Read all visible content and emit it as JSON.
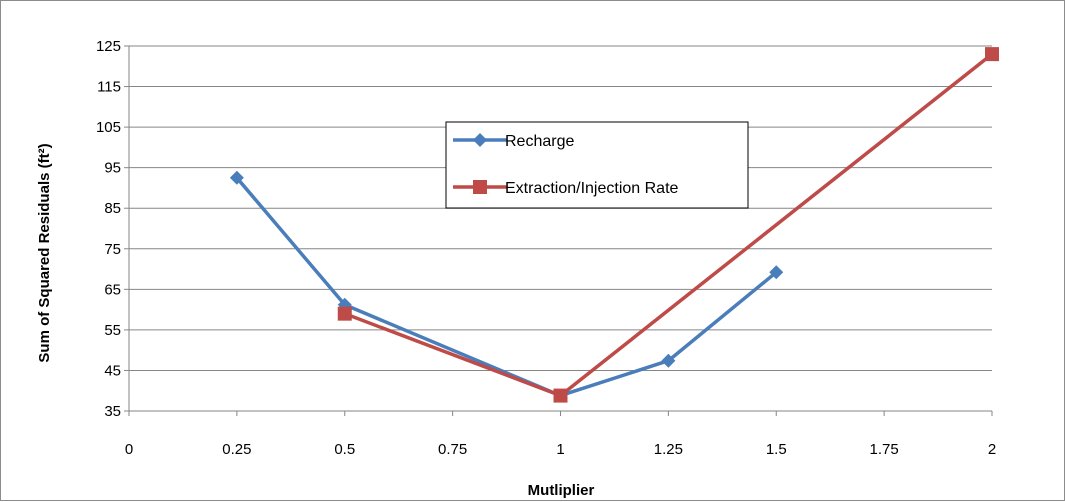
{
  "chart_data": {
    "type": "line",
    "title": "",
    "xlabel": "Mutliplier",
    "ylabel": "Sum of Squared Residuals (ft²)",
    "xlim": [
      0,
      2
    ],
    "ylim": [
      35,
      125
    ],
    "x_ticks": [
      "0",
      "0.25",
      "0.5",
      "0.75",
      "1",
      "1.25",
      "1.5",
      "1.75",
      "2"
    ],
    "y_ticks": [
      "35",
      "45",
      "55",
      "65",
      "75",
      "85",
      "95",
      "105",
      "115",
      "125"
    ],
    "grid": "horizontal",
    "legend_position": "inside-center",
    "series": [
      {
        "name": "Recharge",
        "color": "#4a7ebb",
        "marker": "diamond",
        "points": [
          {
            "x": 0.25,
            "y": 92.5
          },
          {
            "x": 0.5,
            "y": 61.2
          },
          {
            "x": 1.0,
            "y": 38.8
          },
          {
            "x": 1.25,
            "y": 47.4
          },
          {
            "x": 1.5,
            "y": 69.2
          }
        ]
      },
      {
        "name": "Extraction/Injection Rate",
        "color": "#be4b48",
        "marker": "square",
        "points": [
          {
            "x": 0.5,
            "y": 59.0
          },
          {
            "x": 1.0,
            "y": 38.8
          },
          {
            "x": 2.0,
            "y": 123.0
          }
        ]
      }
    ]
  }
}
